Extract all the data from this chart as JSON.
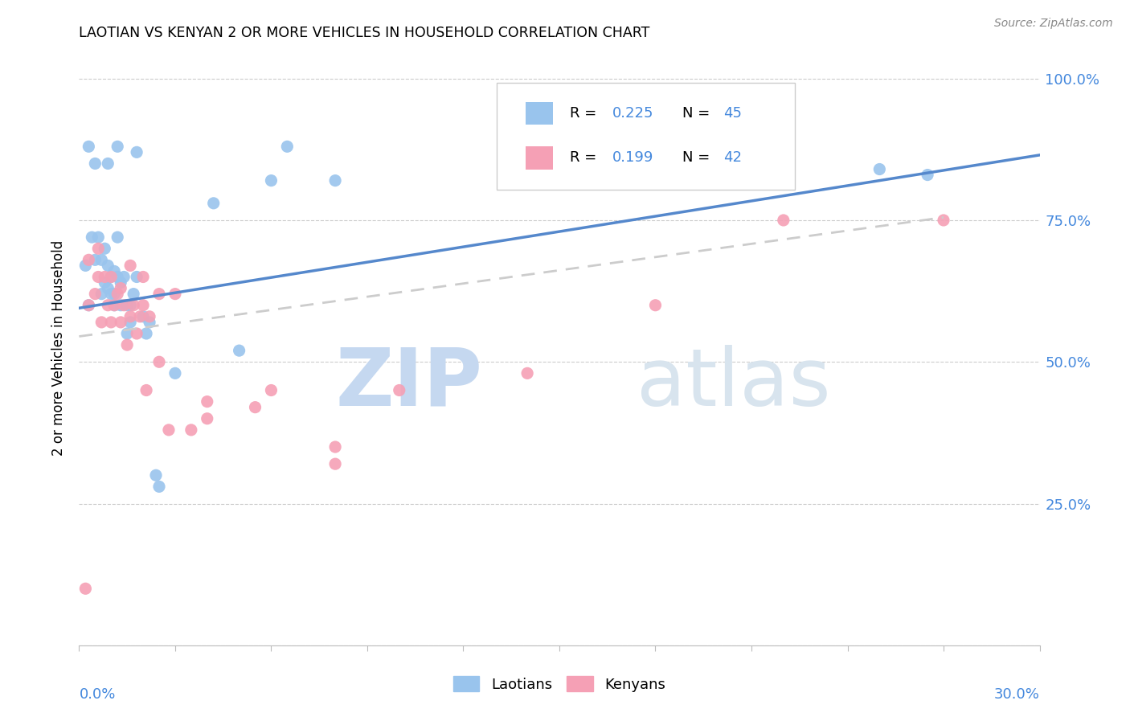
{
  "title": "LAOTIAN VS KENYAN 2 OR MORE VEHICLES IN HOUSEHOLD CORRELATION CHART",
  "source": "Source: ZipAtlas.com",
  "ylabel": "2 or more Vehicles in Household",
  "ylim": [
    0.0,
    1.05
  ],
  "xlim": [
    0.0,
    0.3
  ],
  "ytick_vals": [
    0.0,
    0.25,
    0.5,
    0.75,
    1.0
  ],
  "ytick_labels": [
    "",
    "25.0%",
    "50.0%",
    "75.0%",
    "100.0%"
  ],
  "right_ytick_color": "#4488DD",
  "laotian_R": "0.225",
  "laotian_N": "45",
  "kenyan_R": "0.199",
  "kenyan_N": "42",
  "laotian_color": "#99C4ED",
  "kenyan_color": "#F5A0B5",
  "laotian_line_color": "#5588CC",
  "kenyan_line_color": "#CCCCCC",
  "kenyan_line_style": "--",
  "watermark_zip": "ZIP",
  "watermark_atlas": "atlas",
  "watermark_color": "#D8E8F8",
  "legend_color": "#4488DD",
  "laotian_x": [
    0.002,
    0.003,
    0.004,
    0.005,
    0.006,
    0.007,
    0.007,
    0.008,
    0.008,
    0.009,
    0.009,
    0.01,
    0.01,
    0.011,
    0.011,
    0.011,
    0.012,
    0.012,
    0.013,
    0.013,
    0.014,
    0.015,
    0.015,
    0.016,
    0.016,
    0.017,
    0.018,
    0.02,
    0.021,
    0.022,
    0.024,
    0.025,
    0.03,
    0.042,
    0.05,
    0.06,
    0.065,
    0.08,
    0.25,
    0.265,
    0.003,
    0.005,
    0.009,
    0.012,
    0.018
  ],
  "laotian_y": [
    0.67,
    0.6,
    0.72,
    0.68,
    0.72,
    0.68,
    0.62,
    0.7,
    0.64,
    0.67,
    0.63,
    0.65,
    0.62,
    0.66,
    0.62,
    0.6,
    0.65,
    0.72,
    0.6,
    0.64,
    0.65,
    0.6,
    0.55,
    0.57,
    0.6,
    0.62,
    0.65,
    0.58,
    0.55,
    0.57,
    0.3,
    0.28,
    0.48,
    0.78,
    0.52,
    0.82,
    0.88,
    0.82,
    0.84,
    0.83,
    0.88,
    0.85,
    0.85,
    0.88,
    0.87
  ],
  "kenyan_x": [
    0.002,
    0.003,
    0.005,
    0.006,
    0.007,
    0.008,
    0.009,
    0.01,
    0.011,
    0.012,
    0.013,
    0.014,
    0.015,
    0.016,
    0.017,
    0.018,
    0.019,
    0.02,
    0.021,
    0.022,
    0.025,
    0.028,
    0.035,
    0.04,
    0.06,
    0.08,
    0.003,
    0.006,
    0.01,
    0.013,
    0.016,
    0.02,
    0.025,
    0.03,
    0.04,
    0.055,
    0.08,
    0.1,
    0.14,
    0.18,
    0.22,
    0.27
  ],
  "kenyan_y": [
    0.1,
    0.6,
    0.62,
    0.65,
    0.57,
    0.65,
    0.6,
    0.57,
    0.6,
    0.62,
    0.57,
    0.6,
    0.53,
    0.58,
    0.6,
    0.55,
    0.58,
    0.6,
    0.45,
    0.58,
    0.5,
    0.38,
    0.38,
    0.43,
    0.45,
    0.35,
    0.68,
    0.7,
    0.65,
    0.63,
    0.67,
    0.65,
    0.62,
    0.62,
    0.4,
    0.42,
    0.32,
    0.45,
    0.48,
    0.6,
    0.75,
    0.75
  ],
  "laotian_line_x": [
    0.0,
    0.3
  ],
  "laotian_line_y": [
    0.595,
    0.865
  ],
  "kenyan_line_x": [
    0.0,
    0.27
  ],
  "kenyan_line_y": [
    0.545,
    0.755
  ]
}
